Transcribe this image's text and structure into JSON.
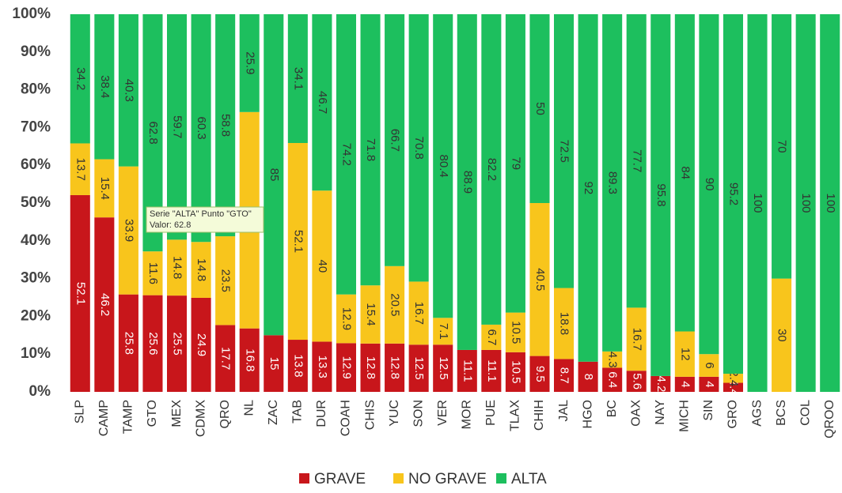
{
  "chart_data": {
    "type": "stacked_bar_100",
    "categories": [
      "SLP",
      "CAMP",
      "TAMP",
      "GTO",
      "MEX",
      "CDMX",
      "QRO",
      "NL",
      "ZAC",
      "TAB",
      "DUR",
      "COAH",
      "CHIS",
      "YUC",
      "SON",
      "VER",
      "MOR",
      "PUE",
      "TLAX",
      "CHIH",
      "JAL",
      "HGO",
      "BC",
      "OAX",
      "NAY",
      "MICH",
      "SIN",
      "GRO",
      "AGS",
      "BCS",
      "COL",
      "QROO"
    ],
    "series": [
      {
        "name": "GRAVE",
        "color": "#c8161b",
        "label_color": "#ffffff",
        "values": [
          52.1,
          46.2,
          25.8,
          25.6,
          25.5,
          24.9,
          17.7,
          16.8,
          15,
          13.8,
          13.3,
          12.9,
          12.8,
          12.8,
          12.5,
          12.5,
          11.1,
          11.1,
          10.5,
          9.5,
          8.7,
          8,
          6.4,
          5.6,
          4.2,
          4,
          4,
          2.4,
          0,
          0,
          0,
          0
        ]
      },
      {
        "name": "NO GRAVE",
        "color": "#f8c51c",
        "label_color": "#333333",
        "values": [
          13.7,
          15.4,
          33.9,
          11.6,
          14.8,
          14.8,
          23.5,
          57.3,
          0,
          52.1,
          40,
          12.9,
          15.4,
          20.5,
          16.7,
          7.1,
          0,
          6.7,
          10.5,
          40.5,
          18.8,
          0,
          4.3,
          16.7,
          0,
          12,
          6,
          2.4,
          0,
          30,
          0,
          0
        ]
      },
      {
        "name": "ALTA",
        "color": "#1dbf5e",
        "label_color": "#333333",
        "values": [
          34.2,
          38.4,
          40.3,
          62.8,
          59.7,
          60.3,
          58.8,
          25.9,
          85,
          34.1,
          46.7,
          74.2,
          71.8,
          66.7,
          70.8,
          80.4,
          88.9,
          82.2,
          79,
          50,
          72.5,
          92,
          89.3,
          77.7,
          95.8,
          84,
          90,
          95.2,
          100,
          70,
          100,
          100
        ]
      }
    ],
    "ylim": [
      0,
      100
    ],
    "yticks": [
      {
        "value": 0,
        "label": "0%"
      },
      {
        "value": 10,
        "label": "10%"
      },
      {
        "value": 20,
        "label": "20%"
      },
      {
        "value": 30,
        "label": "30%"
      },
      {
        "value": 40,
        "label": "40%"
      },
      {
        "value": 50,
        "label": "50%"
      },
      {
        "value": 60,
        "label": "60%"
      },
      {
        "value": 70,
        "label": "70%"
      },
      {
        "value": 80,
        "label": "80%"
      },
      {
        "value": 90,
        "label": "90%"
      },
      {
        "value": 100,
        "label": "100%"
      }
    ],
    "legend": "bottom",
    "tooltip": {
      "title": "Serie \"ALTA\" Punto \"GTO\"",
      "text": "Valor: 62.8"
    }
  }
}
